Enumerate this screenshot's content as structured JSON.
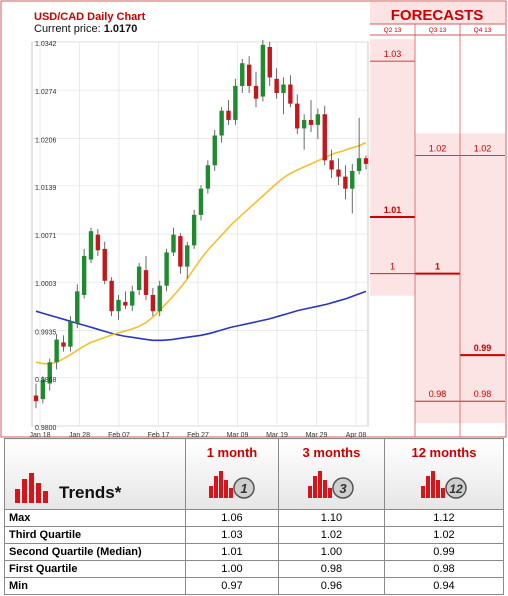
{
  "chart_data": {
    "type": "candlestick",
    "title": "USD/CAD Daily Chart",
    "current_price_label": "Current price:",
    "current_price": "1.0170",
    "y_ticks": [
      "1.0342",
      "1.0274",
      "1.0206",
      "1.0139",
      "1.0071",
      "1.0003",
      "0.9935",
      "0.9868",
      "0.9800"
    ],
    "ylim": [
      0.98,
      1.0342
    ],
    "x_ticks": [
      "Jan 18",
      "Jan 28",
      "Feb 07",
      "Feb 17",
      "Feb 27",
      "Mar 09",
      "Mar 19",
      "Mar 29",
      "Apr 08"
    ],
    "candles": [
      {
        "o": 0.9843,
        "h": 0.986,
        "l": 0.9825,
        "c": 0.9835
      },
      {
        "o": 0.9838,
        "h": 0.987,
        "l": 0.9832,
        "c": 0.9865
      },
      {
        "o": 0.986,
        "h": 0.9895,
        "l": 0.985,
        "c": 0.989
      },
      {
        "o": 0.989,
        "h": 0.993,
        "l": 0.988,
        "c": 0.9922
      },
      {
        "o": 0.9918,
        "h": 0.9928,
        "l": 0.9905,
        "c": 0.9912
      },
      {
        "o": 0.9912,
        "h": 0.9955,
        "l": 0.9905,
        "c": 0.9948
      },
      {
        "o": 0.9945,
        "h": 1.0,
        "l": 0.9938,
        "c": 0.999
      },
      {
        "o": 0.9985,
        "h": 1.005,
        "l": 0.998,
        "c": 1.004
      },
      {
        "o": 1.0035,
        "h": 1.008,
        "l": 1.003,
        "c": 1.0075
      },
      {
        "o": 1.007,
        "h": 1.0078,
        "l": 1.004,
        "c": 1.0048
      },
      {
        "o": 1.005,
        "h": 1.006,
        "l": 1.0,
        "c": 1.0005
      },
      {
        "o": 1.0005,
        "h": 1.001,
        "l": 0.9955,
        "c": 0.9962
      },
      {
        "o": 0.9962,
        "h": 0.9985,
        "l": 0.995,
        "c": 0.9978
      },
      {
        "o": 0.9975,
        "h": 0.999,
        "l": 0.9965,
        "c": 0.997
      },
      {
        "o": 0.997,
        "h": 0.9998,
        "l": 0.9962,
        "c": 0.999
      },
      {
        "o": 0.9992,
        "h": 1.003,
        "l": 0.9985,
        "c": 1.0025
      },
      {
        "o": 1.002,
        "h": 1.004,
        "l": 0.9978,
        "c": 0.9985
      },
      {
        "o": 0.9985,
        "h": 0.9995,
        "l": 0.9955,
        "c": 0.9962
      },
      {
        "o": 0.9962,
        "h": 1.0005,
        "l": 0.9955,
        "c": 0.9998
      },
      {
        "o": 0.9998,
        "h": 1.005,
        "l": 0.999,
        "c": 1.0045
      },
      {
        "o": 1.0045,
        "h": 1.008,
        "l": 1.004,
        "c": 1.007
      },
      {
        "o": 1.0068,
        "h": 1.0072,
        "l": 1.0015,
        "c": 1.0025
      },
      {
        "o": 1.0025,
        "h": 1.006,
        "l": 1.0008,
        "c": 1.0055
      },
      {
        "o": 1.0055,
        "h": 1.0105,
        "l": 1.005,
        "c": 1.0098
      },
      {
        "o": 1.0098,
        "h": 1.014,
        "l": 1.009,
        "c": 1.0135
      },
      {
        "o": 1.0135,
        "h": 1.0175,
        "l": 1.0128,
        "c": 1.0168
      },
      {
        "o": 1.0168,
        "h": 1.0218,
        "l": 1.016,
        "c": 1.021
      },
      {
        "o": 1.021,
        "h": 1.025,
        "l": 1.02,
        "c": 1.0245
      },
      {
        "o": 1.0245,
        "h": 1.026,
        "l": 1.0225,
        "c": 1.0232
      },
      {
        "o": 1.0232,
        "h": 1.029,
        "l": 1.0225,
        "c": 1.028
      },
      {
        "o": 1.028,
        "h": 1.0318,
        "l": 1.027,
        "c": 1.0312
      },
      {
        "o": 1.031,
        "h": 1.0322,
        "l": 1.027,
        "c": 1.028
      },
      {
        "o": 1.028,
        "h": 1.03,
        "l": 1.025,
        "c": 1.0262
      },
      {
        "o": 1.0265,
        "h": 1.0345,
        "l": 1.0258,
        "c": 1.0338
      },
      {
        "o": 1.0335,
        "h": 1.0342,
        "l": 1.028,
        "c": 1.0292
      },
      {
        "o": 1.029,
        "h": 1.0305,
        "l": 1.0262,
        "c": 1.027
      },
      {
        "o": 1.027,
        "h": 1.0292,
        "l": 1.024,
        "c": 1.0282
      },
      {
        "o": 1.0282,
        "h": 1.0295,
        "l": 1.025,
        "c": 1.0255
      },
      {
        "o": 1.0255,
        "h": 1.0268,
        "l": 1.0212,
        "c": 1.022
      },
      {
        "o": 1.022,
        "h": 1.024,
        "l": 1.019,
        "c": 1.0232
      },
      {
        "o": 1.0232,
        "h": 1.026,
        "l": 1.0215,
        "c": 1.0225
      },
      {
        "o": 1.0225,
        "h": 1.0248,
        "l": 1.0205,
        "c": 1.024
      },
      {
        "o": 1.024,
        "h": 1.0252,
        "l": 1.0168,
        "c": 1.0175
      },
      {
        "o": 1.0175,
        "h": 1.019,
        "l": 1.015,
        "c": 1.0162
      },
      {
        "o": 1.0162,
        "h": 1.0178,
        "l": 1.014,
        "c": 1.0152
      },
      {
        "o": 1.0152,
        "h": 1.0168,
        "l": 1.012,
        "c": 1.0135
      },
      {
        "o": 1.0135,
        "h": 1.017,
        "l": 1.01,
        "c": 1.016
      },
      {
        "o": 1.016,
        "h": 1.0235,
        "l": 1.0155,
        "c": 1.0178
      },
      {
        "o": 1.0178,
        "h": 1.0182,
        "l": 1.0162,
        "c": 1.017
      }
    ],
    "ma_short": [
      0.989,
      0.9888,
      0.9888,
      0.9892,
      0.9898,
      0.9905,
      0.9912,
      0.9918,
      0.9922,
      0.9926,
      0.993,
      0.9933,
      0.9936,
      0.994,
      0.9946,
      0.9955,
      0.9966,
      0.9978,
      0.999,
      1.0004,
      1.002,
      1.0036,
      1.005,
      1.0062,
      1.0074,
      1.0086,
      1.0096,
      1.0106,
      1.0116,
      1.0126,
      1.0136,
      1.0146,
      1.0154,
      1.016,
      1.0165,
      1.017,
      1.0175,
      1.018,
      1.0185,
      1.0188,
      1.0192,
      1.0195,
      1.02
    ],
    "ma_long": [
      0.9962,
      0.9958,
      0.9954,
      0.995,
      0.9946,
      0.9942,
      0.9938,
      0.9934,
      0.993,
      0.9927,
      0.9925,
      0.9923,
      0.9921,
      0.9921,
      0.9922,
      0.9924,
      0.9926,
      0.9928,
      0.9931,
      0.9935,
      0.9939,
      0.9942,
      0.9945,
      0.9948,
      0.9951,
      0.9955,
      0.9959,
      0.9963,
      0.9966,
      0.9969,
      0.9972,
      0.9976,
      0.998,
      0.9985,
      0.999
    ],
    "forecasts_title": "FORECASTS",
    "forecast_columns": [
      {
        "label": "Q2 13",
        "levels": [
          {
            "text": "1.03",
            "value": 1.0315
          },
          {
            "text": "1.01",
            "value": 1.0095
          },
          {
            "text": "1",
            "value": 1.0015
          }
        ],
        "median": 1.0095
      },
      {
        "label": "Q3 13",
        "levels": [
          {
            "text": "1.02",
            "value": 1.0182
          },
          {
            "text": "1",
            "value": 1.0015
          },
          {
            "text": "0.98",
            "value": 0.9835
          }
        ],
        "median": 1.0015
      },
      {
        "label": "Q4 13",
        "levels": [
          {
            "text": "1.02",
            "value": 1.0182
          },
          {
            "text": "0.99",
            "value": 0.99
          },
          {
            "text": "0.98",
            "value": 0.9835
          }
        ],
        "median": 0.99
      }
    ]
  },
  "trends": {
    "title": "Trends*",
    "periods": [
      {
        "label": "1 month",
        "icon_number": "1"
      },
      {
        "label": "3 months",
        "icon_number": "3"
      },
      {
        "label": "12 months",
        "icon_number": "12"
      }
    ],
    "rows": [
      {
        "label": "Max",
        "values": [
          "1.06",
          "1.10",
          "1.12"
        ]
      },
      {
        "label": "Third Quartile",
        "values": [
          "1.03",
          "1.02",
          "1.02"
        ]
      },
      {
        "label": "Second Quartile (Median)",
        "values": [
          "1.01",
          "1.00",
          "0.99"
        ]
      },
      {
        "label": "First Quartile",
        "values": [
          "1.00",
          "0.98",
          "0.98"
        ]
      },
      {
        "label": "Min",
        "values": [
          "0.97",
          "0.96",
          "0.94"
        ]
      }
    ]
  },
  "colors": {
    "bull": "#1f8a2f",
    "bear": "#c4161c",
    "ma_short": "#f2c12e",
    "ma_long": "#2a35c4",
    "forecast_bg": "#fde4e4",
    "forecast_line": "#cc0000",
    "red_text": "#cc0000"
  }
}
